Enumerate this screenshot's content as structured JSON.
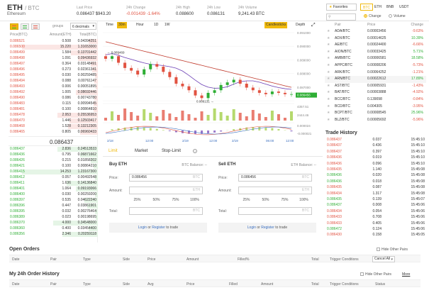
{
  "header": {
    "base": "ETH",
    "quote": "/ BTC",
    "name": "Ethereum",
    "stats": [
      {
        "label": "Last Price",
        "value": "0.086437 $943.20",
        "tone": ""
      },
      {
        "label": "24h Change",
        "value": "-0.001439 -1.64%",
        "tone": "neg"
      },
      {
        "label": "24h High",
        "value": "0.088600",
        "tone": ""
      },
      {
        "label": "24h Low",
        "value": "0.086131",
        "tone": ""
      },
      {
        "label": "24h Volume",
        "value": "9,241.43 BTC",
        "tone": ""
      }
    ]
  },
  "orderbook": {
    "groups_label": "groups",
    "decimals": "6 decimals",
    "headers": [
      "Price(BTC)",
      "Amount(ETH)",
      "Total(BTC)"
    ],
    "asks": [
      {
        "price": "0.086521",
        "amount": "0.508",
        "total": "0.04394251",
        "depth": 0.1
      },
      {
        "price": "0.086500",
        "amount": "15.220",
        "total": "1.31653000",
        "depth": 0.85
      },
      {
        "price": "0.086499",
        "amount": "1.584",
        "total": "0.13701442",
        "depth": 0.3
      },
      {
        "price": "0.086498",
        "amount": "1.091",
        "total": "0.09436932",
        "depth": 0.22
      },
      {
        "price": "0.086497",
        "amount": "0.364",
        "total": "0.03148491",
        "depth": 0.08
      },
      {
        "price": "0.086496",
        "amount": "0.273",
        "total": "0.02361341",
        "depth": 0.06
      },
      {
        "price": "0.086495",
        "amount": "0.030",
        "total": "0.00259485",
        "depth": 0.03
      },
      {
        "price": "0.086494",
        "amount": "0.088",
        "total": "0.00761147",
        "depth": 0.04
      },
      {
        "price": "0.086493",
        "amount": "0.006",
        "total": "0.00051895",
        "depth": 0.02
      },
      {
        "price": "0.086492",
        "amount": "1.005",
        "total": "0.08692446",
        "depth": 0.25
      },
      {
        "price": "0.086490",
        "amount": "0.086",
        "total": "0.00743780",
        "depth": 0.04
      },
      {
        "price": "0.086483",
        "amount": "0.115",
        "total": "0.00994545",
        "depth": 0.05
      },
      {
        "price": "0.086481",
        "amount": "0.100",
        "total": "0.00864810",
        "depth": 0.05
      },
      {
        "price": "0.086478",
        "amount": "2.953",
        "total": "0.25536953",
        "depth": 0.45
      },
      {
        "price": "0.086470",
        "amount": "1.446",
        "total": "0.12503417",
        "depth": 0.32
      },
      {
        "price": "0.086468",
        "amount": "1.528",
        "total": "0.13212305",
        "depth": 0.33
      },
      {
        "price": "0.086465",
        "amount": "0.805",
        "total": "0.06960433",
        "depth": 0.2
      }
    ],
    "last_price": "0.086437",
    "bids": [
      {
        "price": "0.086437",
        "amount": "2.836",
        "total": "0.24513533",
        "depth": 0.45
      },
      {
        "price": "0.086436",
        "amount": "0.795",
        "total": "0.06871662",
        "depth": 0.2
      },
      {
        "price": "0.086426",
        "amount": "0.215",
        "total": "0.01858202",
        "depth": 0.08
      },
      {
        "price": "0.086421",
        "amount": "0.100",
        "total": "0.00864210",
        "depth": 0.05
      },
      {
        "price": "0.086415",
        "amount": "14.253",
        "total": "1.23167300",
        "depth": 0.85
      },
      {
        "price": "0.086412",
        "amount": "0.057",
        "total": "0.00492548",
        "depth": 0.03
      },
      {
        "price": "0.086411",
        "amount": "1.636",
        "total": "0.14136840",
        "depth": 0.35
      },
      {
        "price": "0.086401",
        "amount": "1.064",
        "total": "0.09193066",
        "depth": 0.25
      },
      {
        "price": "0.086400",
        "amount": "0.030",
        "total": "0.00259200",
        "depth": 0.03
      },
      {
        "price": "0.086397",
        "amount": "0.535",
        "total": "0.04622240",
        "depth": 0.15
      },
      {
        "price": "0.086396",
        "amount": "0.447",
        "total": "0.03861901",
        "depth": 0.12
      },
      {
        "price": "0.086395",
        "amount": "0.032",
        "total": "0.00276464",
        "depth": 0.03
      },
      {
        "price": "0.086389",
        "amount": "0.023",
        "total": "0.00198695",
        "depth": 0.02
      },
      {
        "price": "0.086370",
        "amount": "4.000",
        "total": "0.34548000",
        "depth": 0.5
      },
      {
        "price": "0.086360",
        "amount": "0.400",
        "total": "0.03454400",
        "depth": 0.1
      },
      {
        "price": "0.086356",
        "amount": "2.346",
        "total": "0.20259118",
        "depth": 0.4
      }
    ]
  },
  "chart": {
    "time_label": "Time",
    "intervals": [
      "30m",
      "Hour",
      "1D",
      "1W"
    ],
    "selected_interval": "30m",
    "candlesticks_label": "Candlesticks",
    "depth_label": "Depth",
    "price_ticks": [
      "0.091000",
      "0.090000",
      "0.089000",
      "0.088000",
      "0.087000",
      "0.086456"
    ],
    "annotations": [
      "0.089469",
      "0.086131"
    ],
    "volume_ticks": [
      "4357.51",
      "2444.46"
    ],
    "macd_ticks": [
      "0.000024",
      "-0.000021"
    ],
    "x_ticks": [
      "2/18",
      "12:00",
      "2/19",
      "12:00",
      "2/19",
      "06:00",
      "12:00"
    ],
    "close_series": [
      0.0892,
      0.0894,
      0.0889,
      0.0885,
      0.0883,
      0.088,
      0.0884,
      0.0888,
      0.0886,
      0.0882,
      0.0878,
      0.0873,
      0.0871,
      0.0868,
      0.0864,
      0.0862,
      0.0866,
      0.0868,
      0.0872,
      0.0874,
      0.0876,
      0.0873,
      0.087,
      0.0868,
      0.0866,
      0.0865,
      0.0867,
      0.0866,
      0.0865,
      0.0865
    ]
  },
  "trade_form": {
    "tabs": [
      "Limit",
      "Market",
      "Stop-Limit"
    ],
    "info_icon": "info-icon",
    "buy": {
      "title": "Buy ETH",
      "balance": "BTC Balance: --",
      "price_label": "Price:",
      "price_value": "0.086456",
      "price_unit": "BTC",
      "amount_label": "Amount:",
      "amount_unit": "ETH",
      "total_label": "Total:",
      "total_unit": "BTC",
      "percents": [
        "25%",
        "50%",
        "75%",
        "100%"
      ],
      "login": "Login",
      "or": " or ",
      "register": "Register",
      "to_trade": " to trade"
    },
    "sell": {
      "title": "Sell ETH",
      "balance": "ETH Balance: --",
      "price_label": "Price:",
      "price_value": "0.086456",
      "price_unit": "BTC",
      "amount_label": "Amount:",
      "amount_unit": "ETH",
      "total_label": "Total:",
      "total_unit": "BTC",
      "percents": [
        "25%",
        "50%",
        "75%",
        "100%"
      ],
      "login": "Login",
      "or": " or ",
      "register": "Register",
      "to_trade": " to trade"
    }
  },
  "markets": {
    "favorites": "Favorites",
    "tabs": [
      "BTC",
      "ETH",
      "BNB",
      "USDT"
    ],
    "selected_tab": "BTC",
    "change_label": "Change",
    "volume_label": "Volume",
    "headers": [
      "Pair",
      "Price",
      "Change"
    ],
    "rows": [
      {
        "pair": "ADA/BTC",
        "price": "0.00003456",
        "change": "-9.63%",
        "tone": "neg"
      },
      {
        "pair": "ADX/BTC",
        "price": "0.00014625",
        "change": "10.39%",
        "tone": "pos"
      },
      {
        "pair": "AE/BTC",
        "price": "0.00024400",
        "change": "-6.66%",
        "tone": "neg"
      },
      {
        "pair": "AION/BTC",
        "price": "0.00033425",
        "change": "5.71%",
        "tone": "pos"
      },
      {
        "pair": "AMB/BTC",
        "price": "0.00006581",
        "change": "18.58%",
        "tone": "pos"
      },
      {
        "pair": "APPC/BTC",
        "price": "0.00008206",
        "change": "-5.73%",
        "tone": "neg"
      },
      {
        "pair": "ARK/BTC",
        "price": "0.00064252",
        "change": "-1.21%",
        "tone": "neg"
      },
      {
        "pair": "ARN/BTC",
        "price": "0.00022612",
        "change": "17.89%",
        "tone": "pos"
      },
      {
        "pair": "AST/BTC",
        "price": "0.00005931",
        "change": "-1.43%",
        "tone": "neg"
      },
      {
        "pair": "BAT/BTC",
        "price": "0.00003888",
        "change": "-4.92%",
        "tone": "neg"
      },
      {
        "pair": "BCC/BTC",
        "price": "0.139098",
        "change": "-0.84%",
        "tone": "neg"
      },
      {
        "pair": "BCD/BTC",
        "price": "0.004305",
        "change": "-3.95%",
        "tone": "neg"
      },
      {
        "pair": "BCPT/BTC",
        "price": "0.00008545",
        "change": "25.96%",
        "tone": "pos"
      },
      {
        "pair": "BLZ/BTC",
        "price": "0.00005692",
        "change": "-5.96%",
        "tone": "neg"
      }
    ]
  },
  "trade_history": {
    "title": "Trade History",
    "rows": [
      {
        "price": "0.086437",
        "amount": "0.037",
        "time": "15:45:10",
        "tone": "neg"
      },
      {
        "price": "0.086437",
        "amount": "0.436",
        "time": "15:45:10",
        "tone": "neg"
      },
      {
        "price": "0.086437",
        "amount": "0.397",
        "time": "15:45:10",
        "tone": "neg"
      },
      {
        "price": "0.086436",
        "amount": "0.019",
        "time": "15:45:10",
        "tone": "neg"
      },
      {
        "price": "0.086436",
        "amount": "0.096",
        "time": "15:45:10",
        "tone": "neg"
      },
      {
        "price": "0.086435",
        "amount": "1.140",
        "time": "15:45:08",
        "tone": "neg"
      },
      {
        "price": "0.086436",
        "amount": "0.020",
        "time": "15:45:08",
        "tone": "pos"
      },
      {
        "price": "0.086436",
        "amount": "0.018",
        "time": "15:45:08",
        "tone": "pos"
      },
      {
        "price": "0.086435",
        "amount": "0.087",
        "time": "15:45:08",
        "tone": "neg"
      },
      {
        "price": "0.086434",
        "amount": "1.317",
        "time": "15:45:08",
        "tone": "neg"
      },
      {
        "price": "0.086435",
        "amount": "0.139",
        "time": "15:45:07",
        "tone": "pos"
      },
      {
        "price": "0.086437",
        "amount": "0.008",
        "time": "15:45:06",
        "tone": "pos"
      },
      {
        "price": "0.086434",
        "amount": "0.054",
        "time": "15:45:06",
        "tone": "neg"
      },
      {
        "price": "0.086433",
        "amount": "0.708",
        "time": "15:45:06",
        "tone": "neg"
      },
      {
        "price": "0.086433",
        "amount": "0.405",
        "time": "15:45:06",
        "tone": "neg"
      },
      {
        "price": "0.086472",
        "amount": "0.124",
        "time": "15:45:06",
        "tone": "pos"
      },
      {
        "price": "0.086430",
        "amount": "0.158",
        "time": "15:45:05",
        "tone": "neg"
      }
    ]
  },
  "open_orders": {
    "title": "Open Orders",
    "hide_label": "Hide Other Pairs",
    "headers": [
      "Date",
      "Pair",
      "Type",
      "Side",
      "Price",
      "Amount",
      "Filled%",
      "Total",
      "Trigger Conditions"
    ],
    "cancel_all": "Cancel All"
  },
  "order_history": {
    "title": "My 24h Order History",
    "hide_label": "Hide Other Pairs",
    "more": "More",
    "headers": [
      "Date",
      "Pair",
      "Type",
      "Side",
      "Avg",
      "Price",
      "Filled",
      "Amount",
      "Total",
      "Trigger Conditions",
      "Status"
    ]
  },
  "colors": {
    "accent": "#f0b90b",
    "up": "#2eae34",
    "down": "#e15241"
  }
}
